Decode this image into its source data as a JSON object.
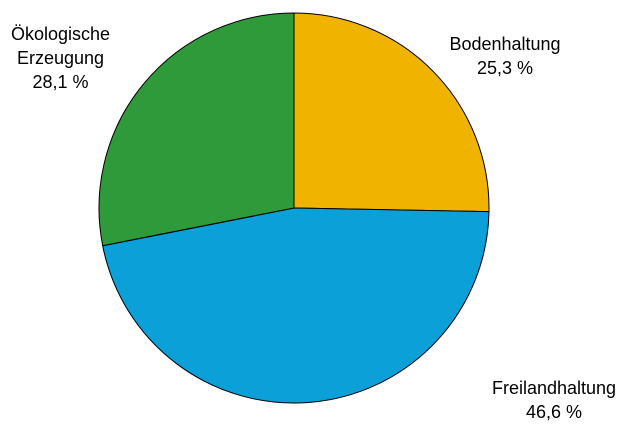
{
  "chart_data": {
    "type": "pie",
    "slices": [
      {
        "name_lines": [
          "Bodenhaltung"
        ],
        "value": 25.3,
        "value_label": "25,3 %",
        "color": "#F0B400"
      },
      {
        "name_lines": [
          "Freilandhaltung"
        ],
        "value": 46.6,
        "value_label": "46,6 %",
        "color": "#0BA0D8"
      },
      {
        "name_lines": [
          "Ökologische",
          "Erzeugung"
        ],
        "value": 28.1,
        "value_label": "28,1 %",
        "color": "#2E9A3A"
      }
    ],
    "start_angle_deg": 0,
    "direction": "clockwise",
    "border_color": "#000000"
  }
}
